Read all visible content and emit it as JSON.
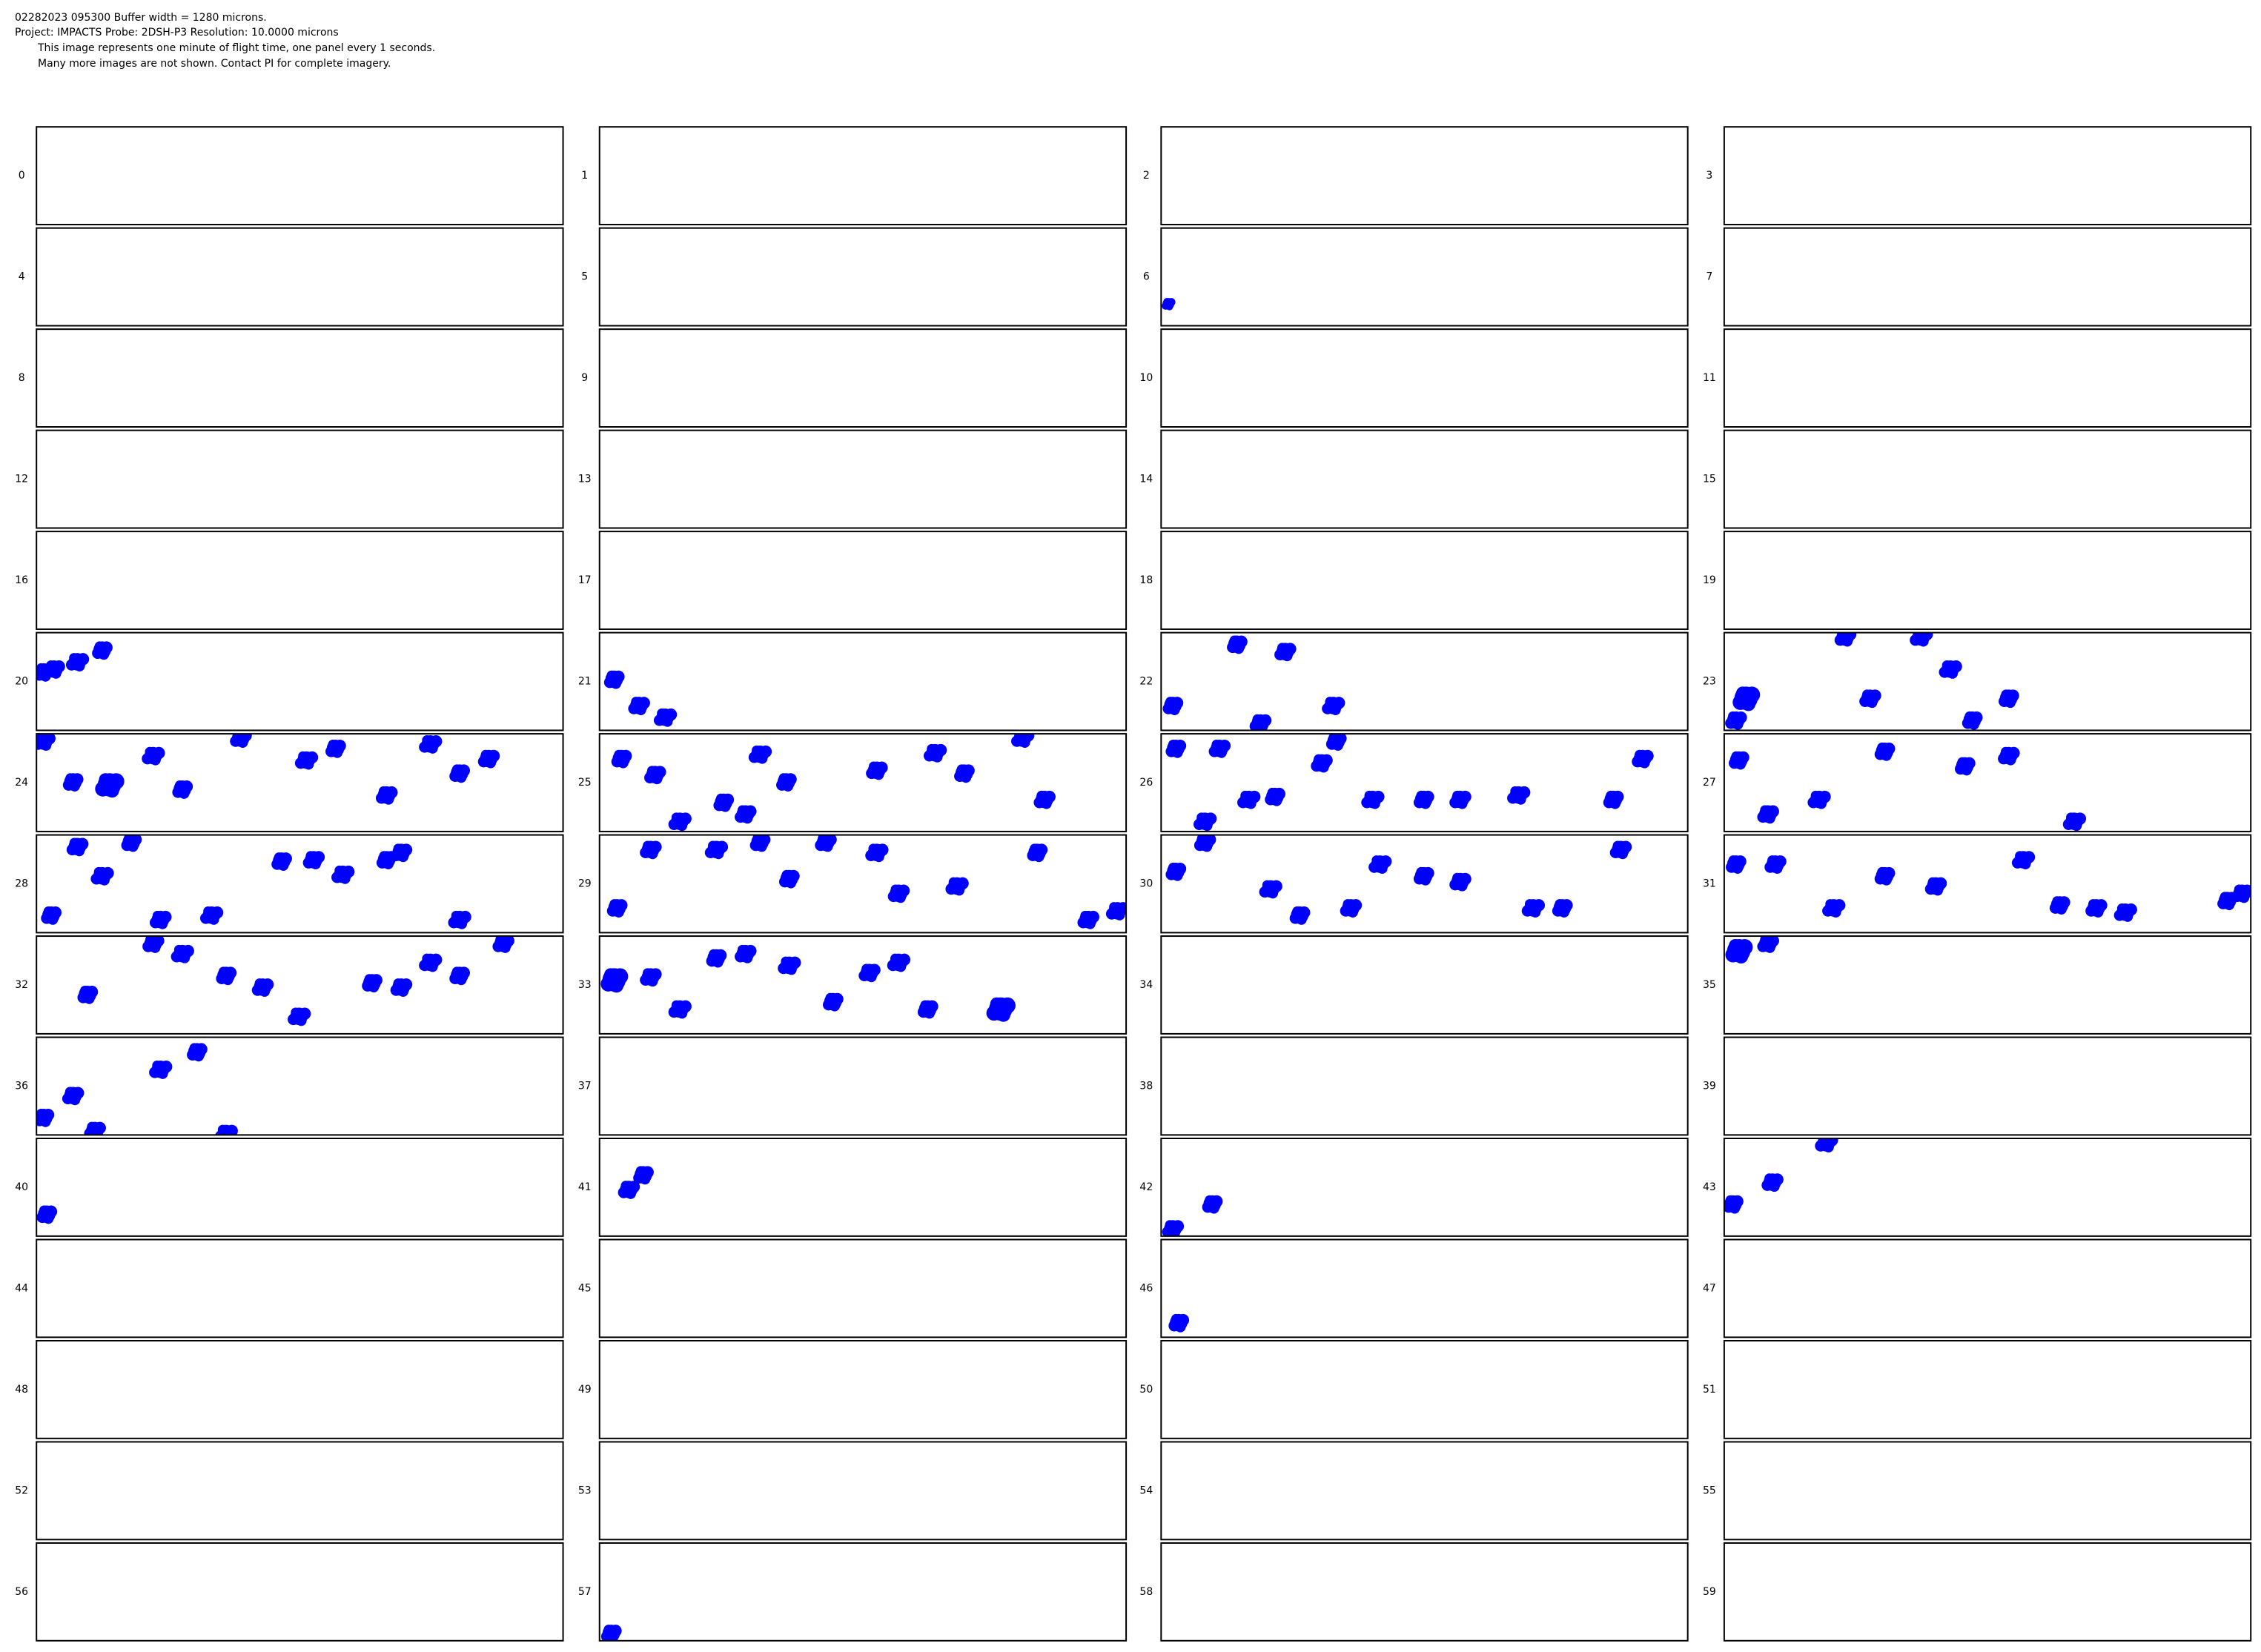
{
  "header": {
    "lines": [
      "02282023 095300  Buffer width = 1280 microns.",
      "Project: IMPACTS  Probe: 2DSH-P3    Resolution: 10.0000 microns",
      "This image represents one minute of flight time, one panel every 1 seconds.",
      "Many more images are not shown.  Contact PI for complete imagery."
    ]
  },
  "panels": [
    0,
    1,
    2,
    3,
    4,
    5,
    6,
    7,
    8,
    9,
    10,
    11,
    12,
    13,
    14,
    15,
    16,
    17,
    18,
    19,
    20,
    21,
    22,
    23,
    24,
    25,
    26,
    27,
    28,
    29,
    30,
    31,
    32,
    33,
    34,
    35,
    36,
    37,
    38,
    39,
    40,
    41,
    42,
    43,
    44,
    45,
    46,
    47,
    48,
    49,
    50,
    51,
    52,
    53,
    54,
    55,
    56,
    57,
    58,
    59
  ]
}
